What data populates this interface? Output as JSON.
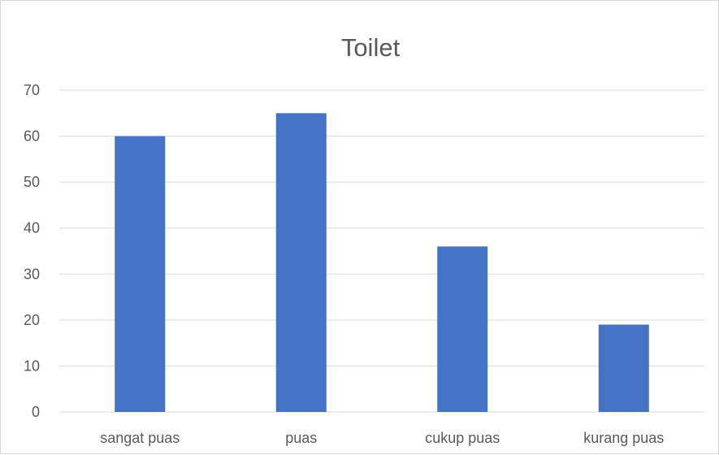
{
  "chart_data": {
    "type": "bar",
    "title": "Toilet",
    "categories": [
      "sangat puas",
      "puas",
      "cukup puas",
      "kurang puas"
    ],
    "values": [
      60,
      65,
      36,
      19
    ],
    "ylim": [
      0,
      70
    ],
    "yticks": [
      "0",
      "10",
      "20",
      "30",
      "40",
      "50",
      "60",
      "70"
    ],
    "xlabel": "",
    "ylabel": "",
    "grid": true,
    "legend": "none",
    "bar_color": "#4472c4"
  }
}
